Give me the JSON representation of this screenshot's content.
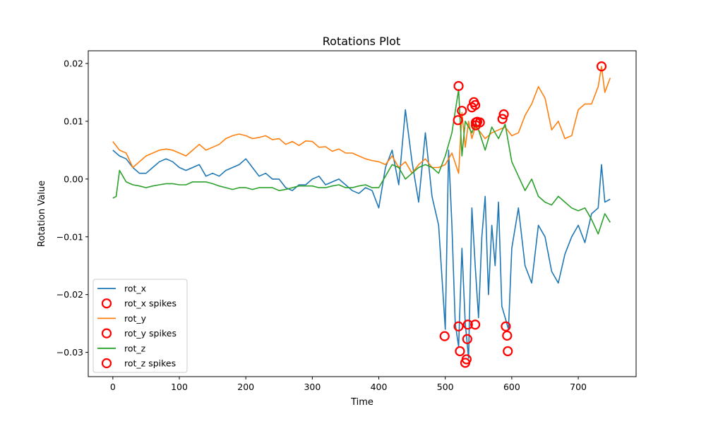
{
  "chart_data": {
    "type": "line",
    "title": "Rotations Plot",
    "xlabel": "Time",
    "ylabel": "Rotation Value",
    "xlim": [
      -37,
      787
    ],
    "ylim": [
      -0.0342,
      0.0222
    ],
    "xticks": [
      0,
      100,
      200,
      300,
      400,
      500,
      600,
      700
    ],
    "yticks": [
      -0.03,
      -0.02,
      -0.01,
      0.0,
      0.01,
      0.02
    ],
    "ytick_labels": [
      "−0.03",
      "−0.02",
      "−0.01",
      "0.00",
      "0.01",
      "0.02"
    ],
    "grid": false,
    "legend_position": "lower-left",
    "legend": [
      "rot_x",
      "rot_x spikes",
      "rot_y",
      "rot_y spikes",
      "rot_z",
      "rot_z spikes"
    ],
    "series": [
      {
        "name": "rot_x",
        "color": "#1f77b4",
        "x": [
          0,
          10,
          20,
          30,
          40,
          50,
          60,
          70,
          80,
          90,
          100,
          110,
          120,
          130,
          140,
          150,
          160,
          170,
          180,
          190,
          200,
          210,
          220,
          230,
          240,
          250,
          260,
          270,
          280,
          290,
          300,
          310,
          320,
          330,
          340,
          350,
          360,
          370,
          380,
          390,
          400,
          410,
          420,
          430,
          440,
          450,
          460,
          470,
          480,
          490,
          500,
          505,
          510,
          515,
          520,
          525,
          530,
          535,
          540,
          545,
          550,
          555,
          560,
          565,
          570,
          575,
          580,
          585,
          590,
          595,
          600,
          610,
          620,
          630,
          640,
          650,
          660,
          670,
          680,
          690,
          700,
          710,
          720,
          730,
          735,
          740,
          748
        ],
        "values": [
          0.005,
          0.004,
          0.0035,
          0.002,
          0.001,
          0.001,
          0.002,
          0.003,
          0.0035,
          0.003,
          0.002,
          0.0015,
          0.002,
          0.0025,
          0.0005,
          0.001,
          0.0005,
          0.0015,
          0.002,
          0.0025,
          0.0035,
          0.002,
          0.0005,
          0.001,
          0.0,
          0.0,
          -0.0015,
          -0.002,
          -0.001,
          -0.001,
          0.0,
          0.0005,
          -0.001,
          -0.0005,
          0.0,
          -0.001,
          -0.002,
          -0.0025,
          -0.0015,
          -0.002,
          -0.005,
          0.002,
          0.005,
          -0.001,
          0.012,
          0.003,
          -0.004,
          0.008,
          -0.003,
          -0.008,
          -0.026,
          0.005,
          -0.008,
          -0.025,
          -0.029,
          -0.012,
          -0.025,
          -0.031,
          -0.005,
          -0.015,
          -0.024,
          -0.01,
          -0.003,
          -0.02,
          -0.008,
          -0.015,
          -0.004,
          -0.022,
          -0.024,
          -0.026,
          -0.012,
          -0.005,
          -0.015,
          -0.018,
          -0.008,
          -0.01,
          -0.016,
          -0.018,
          -0.013,
          -0.01,
          -0.008,
          -0.011,
          -0.006,
          -0.005,
          0.0025,
          -0.004,
          -0.0035
        ]
      },
      {
        "name": "rot_y",
        "color": "#ff7f0e",
        "x": [
          0,
          10,
          20,
          30,
          40,
          50,
          60,
          70,
          80,
          90,
          100,
          110,
          120,
          130,
          140,
          150,
          160,
          170,
          180,
          190,
          200,
          210,
          220,
          230,
          240,
          250,
          260,
          270,
          280,
          290,
          300,
          310,
          320,
          330,
          340,
          350,
          360,
          370,
          380,
          390,
          400,
          410,
          420,
          430,
          440,
          450,
          460,
          470,
          480,
          490,
          500,
          510,
          520,
          525,
          530,
          535,
          540,
          545,
          550,
          560,
          570,
          580,
          590,
          600,
          610,
          620,
          630,
          640,
          650,
          660,
          670,
          680,
          690,
          700,
          710,
          720,
          730,
          735,
          740,
          748
        ],
        "values": [
          0.0065,
          0.005,
          0.0045,
          0.002,
          0.003,
          0.004,
          0.0045,
          0.005,
          0.0052,
          0.005,
          0.0045,
          0.004,
          0.005,
          0.006,
          0.005,
          0.0055,
          0.006,
          0.007,
          0.0075,
          0.0078,
          0.0075,
          0.007,
          0.0072,
          0.0075,
          0.0068,
          0.007,
          0.006,
          0.0065,
          0.0058,
          0.0066,
          0.0065,
          0.0055,
          0.0056,
          0.0048,
          0.0052,
          0.0045,
          0.0045,
          0.004,
          0.0035,
          0.0032,
          0.003,
          0.0025,
          0.004,
          0.002,
          0.003,
          0.001,
          0.0025,
          0.0035,
          0.002,
          0.002,
          0.0025,
          0.0045,
          0.001,
          0.0115,
          0.0055,
          0.01,
          0.007,
          0.009,
          0.0085,
          0.007,
          0.008,
          0.0085,
          0.009,
          0.0075,
          0.008,
          0.011,
          0.013,
          0.016,
          0.014,
          0.0085,
          0.01,
          0.007,
          0.0075,
          0.012,
          0.013,
          0.013,
          0.016,
          0.0195,
          0.015,
          0.0175
        ]
      },
      {
        "name": "rot_z",
        "color": "#2ca02c",
        "x": [
          0,
          5,
          10,
          15,
          20,
          30,
          40,
          50,
          60,
          70,
          80,
          90,
          100,
          110,
          120,
          130,
          140,
          150,
          160,
          170,
          180,
          190,
          200,
          210,
          220,
          230,
          240,
          250,
          260,
          270,
          280,
          290,
          300,
          310,
          320,
          330,
          340,
          350,
          360,
          370,
          380,
          390,
          400,
          410,
          420,
          430,
          440,
          450,
          460,
          470,
          480,
          490,
          500,
          510,
          520,
          525,
          530,
          540,
          545,
          550,
          560,
          570,
          580,
          590,
          600,
          610,
          620,
          630,
          640,
          650,
          660,
          670,
          680,
          690,
          700,
          710,
          720,
          730,
          740,
          748
        ],
        "values": [
          -0.0033,
          -0.003,
          0.0015,
          0.0005,
          -0.0005,
          -0.001,
          -0.0012,
          -0.0015,
          -0.0012,
          -0.001,
          -0.0008,
          -0.0008,
          -0.001,
          -0.001,
          -0.0005,
          -0.0005,
          -0.0005,
          -0.0008,
          -0.0012,
          -0.0015,
          -0.0018,
          -0.0015,
          -0.0015,
          -0.0018,
          -0.0015,
          -0.0015,
          -0.0015,
          -0.002,
          -0.0018,
          -0.0015,
          -0.0012,
          -0.0012,
          -0.0012,
          -0.0015,
          -0.0015,
          -0.0012,
          -0.001,
          -0.0015,
          -0.0015,
          -0.0012,
          -0.001,
          -0.0015,
          -0.0015,
          0.0005,
          0.0025,
          0.002,
          0.0,
          0.001,
          0.002,
          0.0025,
          0.002,
          0.001,
          0.004,
          0.008,
          0.0155,
          0.004,
          0.01,
          0.008,
          0.0095,
          0.0085,
          0.005,
          0.009,
          0.007,
          0.0095,
          0.003,
          0.0005,
          -0.002,
          0.0,
          -0.003,
          -0.004,
          -0.0045,
          -0.003,
          -0.004,
          -0.005,
          -0.0055,
          -0.005,
          -0.007,
          -0.0095,
          -0.006,
          -0.0075
        ]
      }
    ],
    "spikes": [
      {
        "name": "rot_x spikes",
        "color": "#ff0000",
        "x": [
          499,
          520,
          522,
          530,
          532,
          533,
          534,
          545,
          591,
          593,
          594
        ],
        "values": [
          -0.0272,
          -0.0255,
          -0.0298,
          -0.0318,
          -0.0312,
          -0.0277,
          -0.0252,
          -0.0252,
          -0.0255,
          -0.0271,
          -0.0298
        ]
      },
      {
        "name": "rot_y spikes",
        "color": "#ff0000",
        "x": [
          520,
          525,
          540,
          543,
          545,
          546,
          552,
          588,
          735
        ],
        "values": [
          0.0161,
          0.0118,
          0.0124,
          0.0133,
          0.0128,
          0.0098,
          0.0098,
          0.0112,
          0.0195
        ]
      },
      {
        "name": "rot_z spikes",
        "color": "#ff0000",
        "x": [
          519,
          546,
          548,
          586
        ],
        "values": [
          0.0102,
          0.0093,
          0.0099,
          0.0104
        ]
      }
    ]
  }
}
